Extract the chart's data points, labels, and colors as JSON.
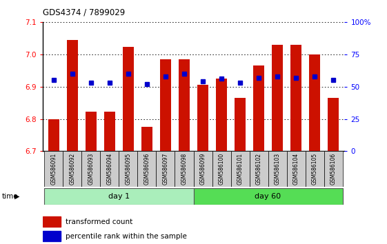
{
  "title": "GDS4374 / 7899029",
  "samples": [
    "GSM586091",
    "GSM586092",
    "GSM586093",
    "GSM586094",
    "GSM586095",
    "GSM586096",
    "GSM586097",
    "GSM586098",
    "GSM586099",
    "GSM586100",
    "GSM586101",
    "GSM586102",
    "GSM586103",
    "GSM586104",
    "GSM586105",
    "GSM586106"
  ],
  "bar_tops": [
    6.8,
    7.045,
    6.822,
    6.822,
    7.022,
    6.775,
    6.985,
    6.985,
    6.905,
    6.925,
    6.865,
    6.965,
    7.03,
    7.03,
    7.0,
    6.865
  ],
  "blue_pct": [
    55,
    60,
    53,
    53,
    60,
    52,
    58,
    60,
    54,
    56,
    53,
    57,
    58,
    57,
    58,
    55
  ],
  "ylim": [
    6.7,
    7.1
  ],
  "yticks": [
    6.7,
    6.8,
    6.9,
    7.0,
    7.1
  ],
  "right_ytick_pcts": [
    0,
    25,
    50,
    75,
    100
  ],
  "right_ytick_labels": [
    "0",
    "25",
    "50",
    "75",
    "100%"
  ],
  "bar_color": "#cc1100",
  "blue_color": "#0000cc",
  "bar_width": 0.6,
  "base": 6.7,
  "day1_indices": [
    0,
    1,
    2,
    3,
    4,
    5,
    6,
    7
  ],
  "day60_indices": [
    8,
    9,
    10,
    11,
    12,
    13,
    14,
    15
  ],
  "day1_color": "#aaeebb",
  "day60_color": "#55dd55",
  "tick_bg_color": "#cccccc",
  "legend_red_label": "transformed count",
  "legend_blue_label": "percentile rank within the sample"
}
